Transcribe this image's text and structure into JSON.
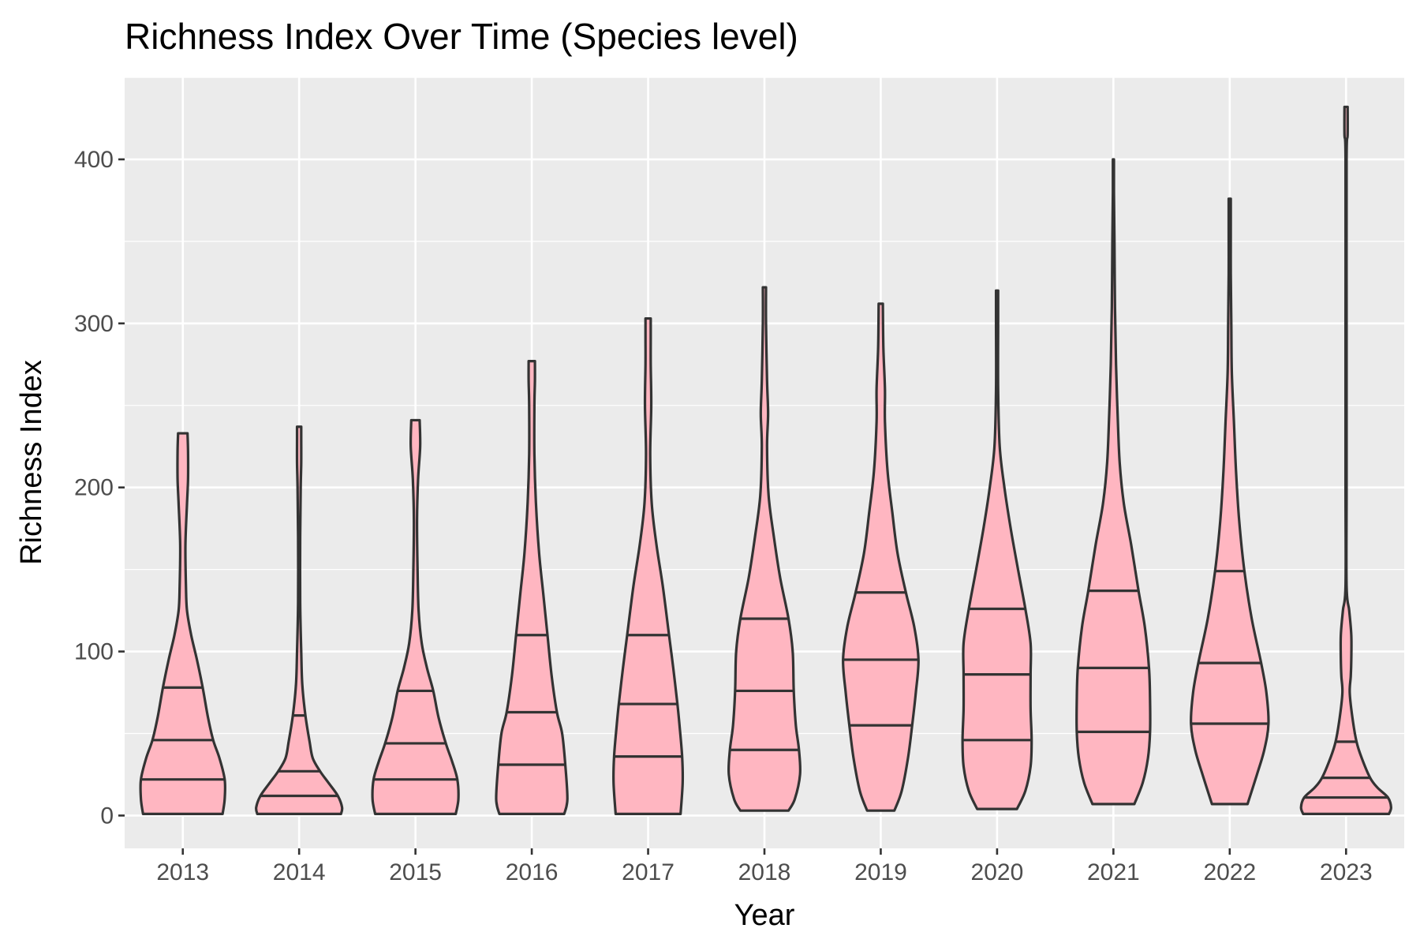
{
  "chart_data": {
    "type": "violin",
    "title": "Richness Index Over Time (Species level)",
    "xlabel": "Year",
    "ylabel": "Richness Index",
    "ylim": [
      -20,
      450
    ],
    "yticks": [
      0,
      100,
      200,
      300,
      400
    ],
    "grid": true,
    "legend": "none",
    "colors": {
      "fill": "#FFB6C1",
      "outline": "#333333",
      "panel": "#EBEBEB",
      "grid": "#FFFFFF"
    },
    "categories": [
      "2013",
      "2014",
      "2015",
      "2016",
      "2017",
      "2018",
      "2019",
      "2020",
      "2021",
      "2022",
      "2023"
    ],
    "series": [
      {
        "category": "2013",
        "min": 1,
        "max": 233,
        "quantiles": [
          22,
          46,
          78
        ],
        "density": [
          [
            1,
            0.76
          ],
          [
            10,
            0.8
          ],
          [
            22,
            0.8
          ],
          [
            35,
            0.7
          ],
          [
            46,
            0.58
          ],
          [
            60,
            0.48
          ],
          [
            78,
            0.38
          ],
          [
            95,
            0.27
          ],
          [
            110,
            0.16
          ],
          [
            125,
            0.08
          ],
          [
            140,
            0.06
          ],
          [
            165,
            0.05
          ],
          [
            190,
            0.08
          ],
          [
            205,
            0.1
          ],
          [
            222,
            0.1
          ],
          [
            233,
            0.09
          ]
        ]
      },
      {
        "category": "2014",
        "min": 1,
        "max": 237,
        "quantiles": [
          12,
          27,
          61
        ],
        "density": [
          [
            1,
            0.8
          ],
          [
            5,
            0.82
          ],
          [
            12,
            0.74
          ],
          [
            20,
            0.56
          ],
          [
            27,
            0.4
          ],
          [
            35,
            0.26
          ],
          [
            45,
            0.2
          ],
          [
            61,
            0.12
          ],
          [
            80,
            0.06
          ],
          [
            100,
            0.04
          ],
          [
            130,
            0.02
          ],
          [
            170,
            0.02
          ],
          [
            200,
            0.03
          ],
          [
            215,
            0.04
          ],
          [
            230,
            0.04
          ],
          [
            237,
            0.04
          ]
        ]
      },
      {
        "category": "2015",
        "min": 1,
        "max": 241,
        "quantiles": [
          22,
          44,
          76
        ],
        "density": [
          [
            1,
            0.77
          ],
          [
            10,
            0.82
          ],
          [
            22,
            0.8
          ],
          [
            33,
            0.7
          ],
          [
            44,
            0.58
          ],
          [
            60,
            0.44
          ],
          [
            76,
            0.34
          ],
          [
            90,
            0.22
          ],
          [
            105,
            0.12
          ],
          [
            125,
            0.06
          ],
          [
            150,
            0.04
          ],
          [
            180,
            0.03
          ],
          [
            205,
            0.05
          ],
          [
            225,
            0.09
          ],
          [
            241,
            0.08
          ]
        ]
      },
      {
        "category": "2016",
        "min": 1,
        "max": 277,
        "quantiles": [
          31,
          63,
          110
        ],
        "density": [
          [
            1,
            0.62
          ],
          [
            10,
            0.68
          ],
          [
            31,
            0.64
          ],
          [
            50,
            0.58
          ],
          [
            63,
            0.48
          ],
          [
            85,
            0.38
          ],
          [
            110,
            0.3
          ],
          [
            135,
            0.22
          ],
          [
            160,
            0.14
          ],
          [
            190,
            0.08
          ],
          [
            220,
            0.05
          ],
          [
            250,
            0.05
          ],
          [
            265,
            0.06
          ],
          [
            277,
            0.06
          ]
        ]
      },
      {
        "category": "2017",
        "min": 1,
        "max": 303,
        "quantiles": [
          36,
          68,
          110
        ],
        "density": [
          [
            1,
            0.62
          ],
          [
            20,
            0.66
          ],
          [
            36,
            0.65
          ],
          [
            55,
            0.6
          ],
          [
            68,
            0.56
          ],
          [
            90,
            0.48
          ],
          [
            110,
            0.4
          ],
          [
            140,
            0.28
          ],
          [
            165,
            0.16
          ],
          [
            190,
            0.07
          ],
          [
            220,
            0.04
          ],
          [
            250,
            0.06
          ],
          [
            275,
            0.05
          ],
          [
            290,
            0.05
          ],
          [
            303,
            0.05
          ]
        ]
      },
      {
        "category": "2018",
        "min": 3,
        "max": 322,
        "quantiles": [
          40,
          76,
          120
        ],
        "density": [
          [
            3,
            0.46
          ],
          [
            10,
            0.58
          ],
          [
            25,
            0.68
          ],
          [
            40,
            0.66
          ],
          [
            55,
            0.6
          ],
          [
            76,
            0.56
          ],
          [
            100,
            0.54
          ],
          [
            120,
            0.46
          ],
          [
            145,
            0.3
          ],
          [
            170,
            0.18
          ],
          [
            195,
            0.08
          ],
          [
            225,
            0.05
          ],
          [
            245,
            0.07
          ],
          [
            265,
            0.05
          ],
          [
            300,
            0.03
          ],
          [
            322,
            0.03
          ]
        ]
      },
      {
        "category": "2019",
        "min": 3,
        "max": 312,
        "quantiles": [
          55,
          95,
          136
        ],
        "density": [
          [
            3,
            0.26
          ],
          [
            15,
            0.4
          ],
          [
            35,
            0.52
          ],
          [
            55,
            0.6
          ],
          [
            75,
            0.67
          ],
          [
            95,
            0.72
          ],
          [
            115,
            0.64
          ],
          [
            136,
            0.48
          ],
          [
            160,
            0.32
          ],
          [
            185,
            0.22
          ],
          [
            210,
            0.13
          ],
          [
            240,
            0.08
          ],
          [
            260,
            0.08
          ],
          [
            285,
            0.05
          ],
          [
            312,
            0.04
          ]
        ]
      },
      {
        "category": "2020",
        "min": 4,
        "max": 320,
        "quantiles": [
          46,
          86,
          126
        ],
        "density": [
          [
            4,
            0.38
          ],
          [
            15,
            0.54
          ],
          [
            30,
            0.64
          ],
          [
            46,
            0.66
          ],
          [
            65,
            0.64
          ],
          [
            86,
            0.64
          ],
          [
            105,
            0.64
          ],
          [
            126,
            0.54
          ],
          [
            150,
            0.4
          ],
          [
            175,
            0.26
          ],
          [
            200,
            0.14
          ],
          [
            225,
            0.05
          ],
          [
            260,
            0.02
          ],
          [
            300,
            0.02
          ],
          [
            320,
            0.02
          ]
        ]
      },
      {
        "category": "2021",
        "min": 7,
        "max": 400,
        "quantiles": [
          51,
          90,
          137
        ],
        "density": [
          [
            7,
            0.4
          ],
          [
            20,
            0.56
          ],
          [
            35,
            0.66
          ],
          [
            51,
            0.7
          ],
          [
            70,
            0.7
          ],
          [
            90,
            0.68
          ],
          [
            115,
            0.6
          ],
          [
            137,
            0.48
          ],
          [
            165,
            0.34
          ],
          [
            190,
            0.2
          ],
          [
            215,
            0.12
          ],
          [
            245,
            0.08
          ],
          [
            275,
            0.05
          ],
          [
            310,
            0.03
          ],
          [
            350,
            0.02
          ],
          [
            380,
            0.01
          ],
          [
            400,
            0.01
          ]
        ]
      },
      {
        "category": "2022",
        "min": 7,
        "max": 376,
        "quantiles": [
          56,
          93,
          149
        ],
        "density": [
          [
            7,
            0.34
          ],
          [
            25,
            0.52
          ],
          [
            40,
            0.66
          ],
          [
            56,
            0.74
          ],
          [
            75,
            0.7
          ],
          [
            93,
            0.6
          ],
          [
            120,
            0.42
          ],
          [
            149,
            0.28
          ],
          [
            180,
            0.18
          ],
          [
            210,
            0.12
          ],
          [
            240,
            0.08
          ],
          [
            270,
            0.04
          ],
          [
            300,
            0.03
          ],
          [
            330,
            0.02
          ],
          [
            360,
            0.02
          ],
          [
            376,
            0.02
          ]
        ]
      },
      {
        "category": "2023",
        "min": 1,
        "max": 432,
        "quantiles": [
          11,
          23,
          45
        ],
        "density": [
          [
            1,
            0.82
          ],
          [
            5,
            0.86
          ],
          [
            11,
            0.8
          ],
          [
            17,
            0.6
          ],
          [
            23,
            0.46
          ],
          [
            35,
            0.3
          ],
          [
            45,
            0.2
          ],
          [
            60,
            0.12
          ],
          [
            75,
            0.07
          ],
          [
            85,
            0.09
          ],
          [
            95,
            0.1
          ],
          [
            110,
            0.1
          ],
          [
            125,
            0.06
          ],
          [
            140,
            0.01
          ],
          [
            200,
            0.01
          ],
          [
            300,
            0.01
          ],
          [
            400,
            0.01
          ],
          [
            415,
            0.03
          ],
          [
            432,
            0.03
          ]
        ]
      }
    ]
  }
}
